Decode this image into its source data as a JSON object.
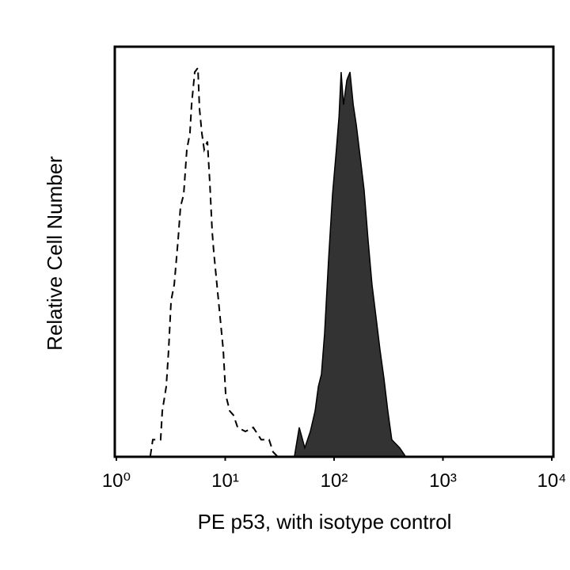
{
  "chart_data": {
    "type": "histogram-overlay",
    "x_label": "PE p53, with isotype control",
    "y_label": "Relative Cell Number",
    "xscale": "log",
    "xlim": [
      1,
      10000
    ],
    "xticks": [
      {
        "value": 1,
        "label": "10⁰"
      },
      {
        "value": 10,
        "label": "10¹"
      },
      {
        "value": 100,
        "label": "10²"
      },
      {
        "value": 1000,
        "label": "10³"
      },
      {
        "value": 10000,
        "label": "10⁴"
      }
    ],
    "ylim": [
      0,
      100
    ],
    "series": [
      {
        "style": "dashed",
        "color": "#000000",
        "x": [
          2.05,
          2.16,
          2.55,
          2.64,
          2.87,
          3.02,
          3.18,
          3.4,
          3.69,
          3.88,
          4.15,
          4.44,
          4.74,
          4.91,
          5.25,
          5.61,
          5.8,
          6.1,
          6.41,
          6.86,
          7.21,
          7.59,
          7.85,
          8.39,
          8.97,
          9.59,
          10.1,
          11,
          11.9,
          13,
          15.3,
          18.1,
          21.4,
          25.3,
          27.5,
          29.9
        ],
        "values": [
          0,
          4,
          4,
          11,
          17,
          26,
          38,
          42,
          53,
          61,
          64,
          75,
          79,
          86,
          94,
          95,
          85,
          79,
          75,
          77,
          67,
          55,
          50,
          42,
          34,
          26,
          15,
          11,
          10,
          7,
          6,
          7,
          4,
          4,
          1,
          0
        ]
      },
      {
        "style": "filled",
        "color": "#333333",
        "x": [
          43.3,
          47.9,
          53.8,
          60.5,
          66.9,
          71.6,
          76.5,
          81.8,
          89,
          96.7,
          105,
          111,
          116,
          122,
          131,
          140,
          150,
          160,
          174,
          189,
          205,
          223,
          243,
          264,
          287,
          312,
          339,
          401,
          451
        ],
        "values": [
          0,
          7,
          2,
          6,
          11,
          17,
          20,
          30,
          48,
          64,
          75,
          83,
          94,
          86,
          92,
          94,
          86,
          81,
          73,
          65,
          53,
          42,
          34,
          26,
          19,
          11,
          4,
          2,
          0
        ]
      }
    ]
  }
}
